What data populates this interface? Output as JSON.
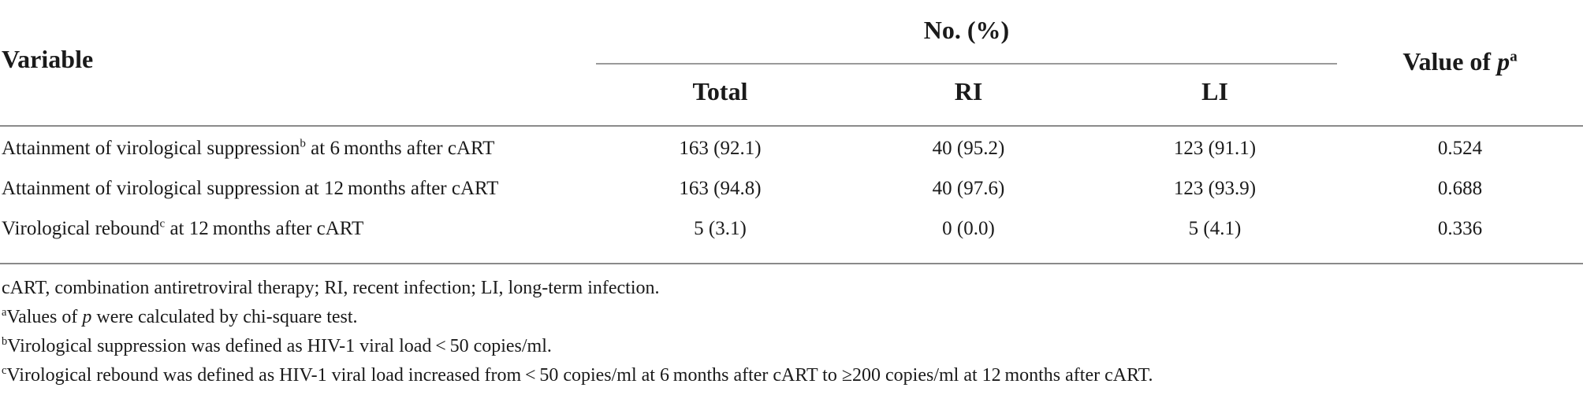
{
  "header": {
    "variable": "Variable",
    "group": "No. (%)",
    "total": "Total",
    "ri": "RI",
    "li": "LI",
    "p_prefix": "Value of ",
    "p_var": "p",
    "p_sup": "a"
  },
  "rows": [
    {
      "variable_pre": "Attainment of virological suppression",
      "variable_sup": "b",
      "variable_post": " at 6 months after cART",
      "total": "163 (92.1)",
      "ri": "40 (95.2)",
      "li": "123 (91.1)",
      "p": "0.524"
    },
    {
      "variable_pre": "Attainment of virological suppression at 12 months after cART",
      "variable_sup": "",
      "variable_post": "",
      "total": "163 (94.8)",
      "ri": "40 (97.6)",
      "li": "123 (93.9)",
      "p": "0.688"
    },
    {
      "variable_pre": "Virological rebound",
      "variable_sup": "c",
      "variable_post": " at 12 months after cART",
      "total": "5 (3.1)",
      "ri": "0 (0.0)",
      "li": "5 (4.1)",
      "p": "0.336"
    }
  ],
  "footnotes": {
    "abbrev": "cART, combination antiretroviral therapy; RI, recent infection; LI, long-term infection.",
    "a_mark": "a",
    "a_pre": "Values of ",
    "a_var": "p",
    "a_post": " were calculated by chi-square test.",
    "b_mark": "b",
    "b_text": "Virological suppression was defined as HIV-1 viral load < 50 copies/ml.",
    "c_mark": "c",
    "c_text": "Virological rebound was defined as HIV-1 viral load increased from < 50 copies/ml at 6 months after cART to ≥200 copies/ml at 12 months after cART."
  }
}
